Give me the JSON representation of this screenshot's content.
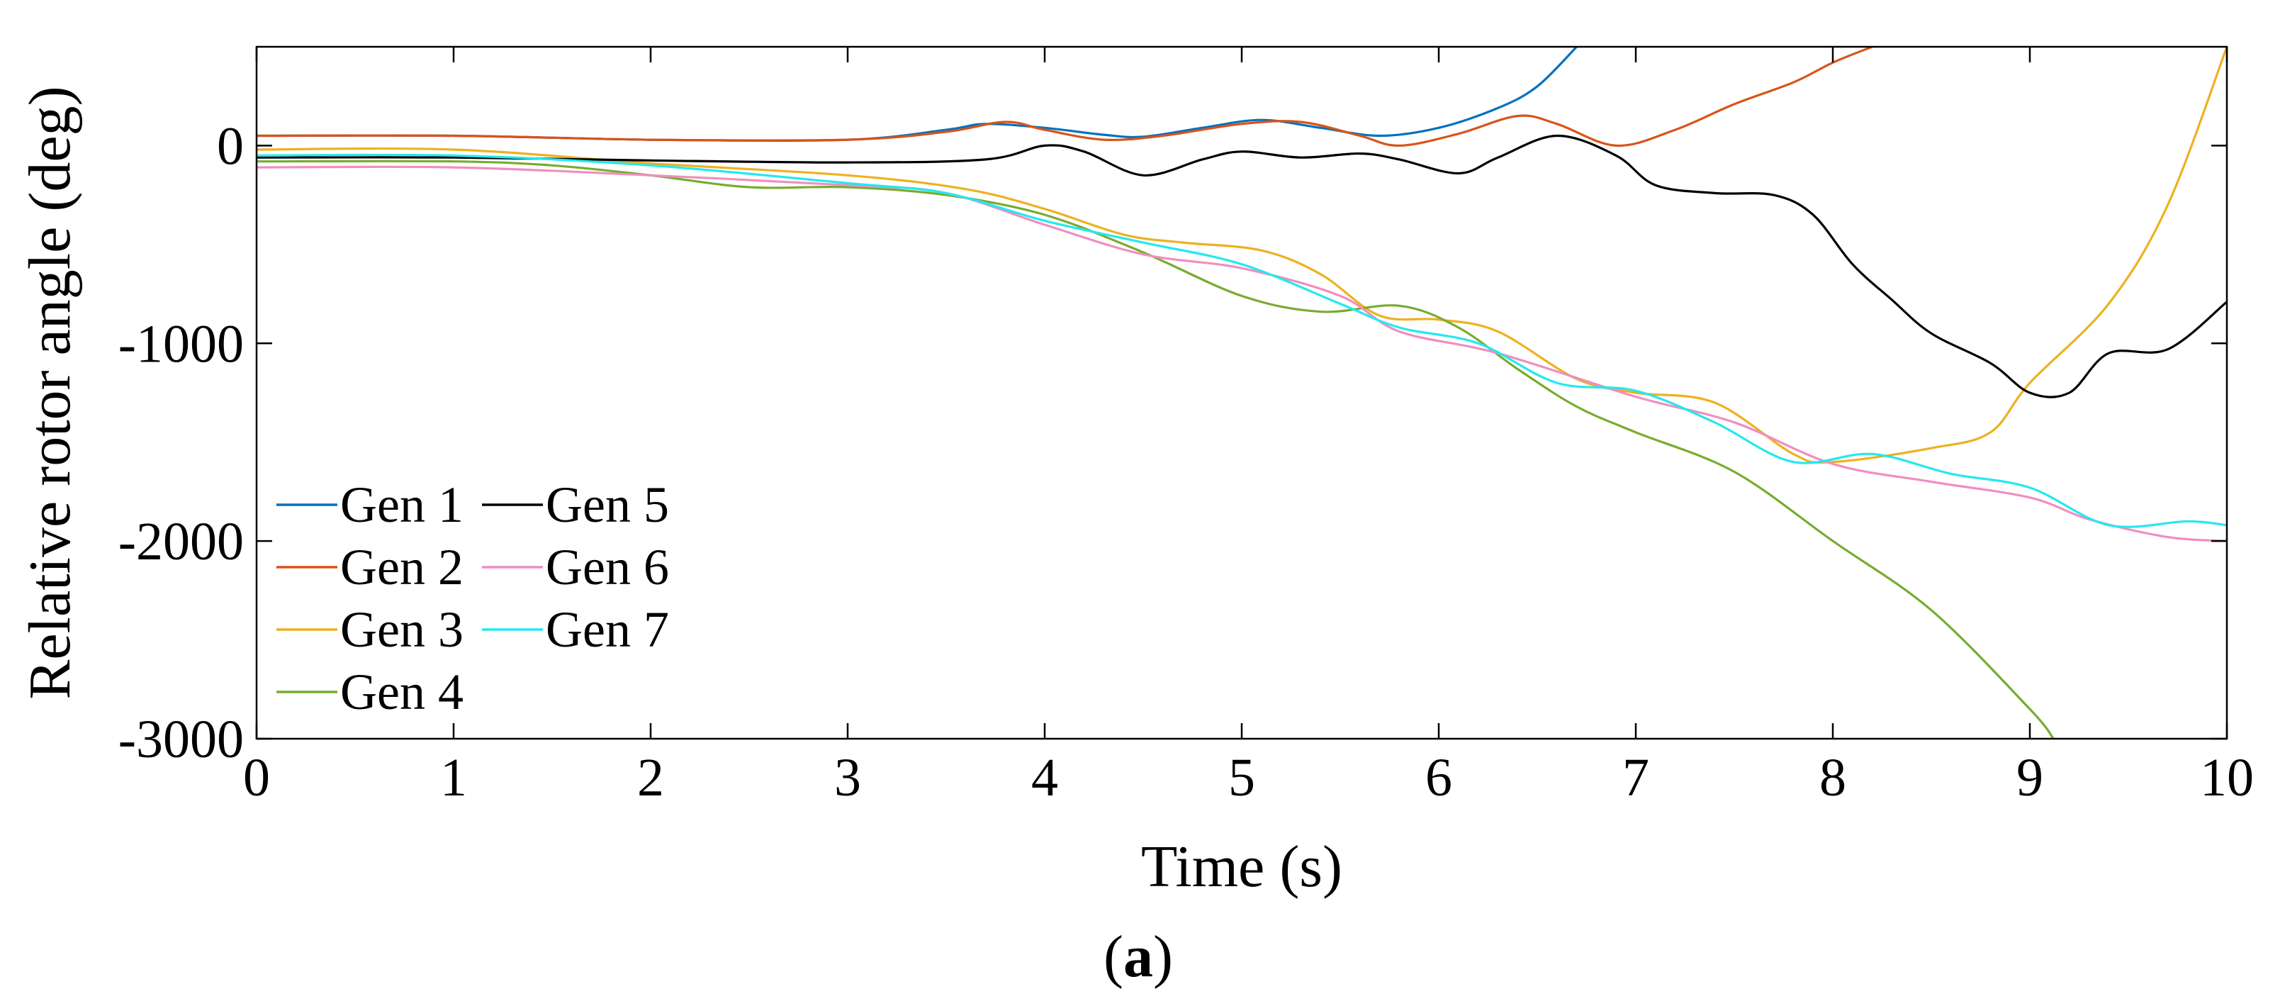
{
  "chart_data": {
    "type": "line",
    "title": "",
    "xlabel": "Time (s)",
    "ylabel": "Relative rotor angle (deg)",
    "xlim": [
      0,
      10
    ],
    "ylim": [
      -3000,
      500
    ],
    "xticks": [
      0,
      1,
      2,
      3,
      4,
      5,
      6,
      7,
      8,
      9,
      10
    ],
    "xtick_labels": [
      "0",
      "1",
      "2",
      "3",
      "4",
      "5",
      "6",
      "7",
      "8",
      "9",
      "10"
    ],
    "yticks": [
      0,
      -1000,
      -2000,
      -3000
    ],
    "ytick_labels": [
      "0",
      "-1000",
      "-2000",
      "-3000"
    ],
    "grid": false,
    "legend_position": "bottom-left",
    "caption": {
      "open": "(",
      "letter": "a",
      "close": ")"
    },
    "series": [
      {
        "name": "Gen 1",
        "color": "#0072BD",
        "points": [
          [
            0,
            50
          ],
          [
            1,
            50
          ],
          [
            2,
            30
          ],
          [
            3,
            30
          ],
          [
            3.5,
            80
          ],
          [
            3.7,
            110
          ],
          [
            4,
            90
          ],
          [
            4.3,
            55
          ],
          [
            4.5,
            45
          ],
          [
            4.8,
            90
          ],
          [
            5.1,
            130
          ],
          [
            5.4,
            90
          ],
          [
            5.7,
            50
          ],
          [
            6,
            90
          ],
          [
            6.3,
            190
          ],
          [
            6.5,
            300
          ],
          [
            6.7,
            500
          ]
        ]
      },
      {
        "name": "Gen 2",
        "color": "#D95319",
        "points": [
          [
            0,
            50
          ],
          [
            1,
            50
          ],
          [
            2,
            30
          ],
          [
            3,
            30
          ],
          [
            3.5,
            70
          ],
          [
            3.8,
            120
          ],
          [
            4,
            80
          ],
          [
            4.3,
            30
          ],
          [
            4.6,
            50
          ],
          [
            5,
            110
          ],
          [
            5.3,
            120
          ],
          [
            5.6,
            50
          ],
          [
            5.8,
            0
          ],
          [
            6.1,
            60
          ],
          [
            6.4,
            150
          ],
          [
            6.6,
            110
          ],
          [
            6.9,
            0
          ],
          [
            7.2,
            80
          ],
          [
            7.5,
            210
          ],
          [
            7.8,
            320
          ],
          [
            8,
            420
          ],
          [
            8.2,
            500
          ]
        ]
      },
      {
        "name": "Gen 3",
        "color": "#EDB120",
        "points": [
          [
            0,
            -20
          ],
          [
            1,
            -20
          ],
          [
            2,
            -90
          ],
          [
            3,
            -150
          ],
          [
            3.6,
            -220
          ],
          [
            4,
            -320
          ],
          [
            4.4,
            -450
          ],
          [
            4.7,
            -490
          ],
          [
            5.1,
            -530
          ],
          [
            5.4,
            -650
          ],
          [
            5.7,
            -860
          ],
          [
            6,
            -880
          ],
          [
            6.3,
            -940
          ],
          [
            6.7,
            -1180
          ],
          [
            7,
            -1250
          ],
          [
            7.4,
            -1300
          ],
          [
            7.8,
            -1560
          ],
          [
            8,
            -1600
          ],
          [
            8.5,
            -1530
          ],
          [
            8.8,
            -1450
          ],
          [
            9,
            -1200
          ],
          [
            9.4,
            -800
          ],
          [
            9.7,
            -300
          ],
          [
            10,
            500
          ]
        ]
      },
      {
        "name": "Gen 4",
        "color": "#77AC30",
        "points": [
          [
            0,
            -80
          ],
          [
            1,
            -80
          ],
          [
            1.5,
            -100
          ],
          [
            2,
            -150
          ],
          [
            2.5,
            -210
          ],
          [
            3,
            -210
          ],
          [
            3.5,
            -250
          ],
          [
            4,
            -350
          ],
          [
            4.5,
            -540
          ],
          [
            5,
            -760
          ],
          [
            5.4,
            -840
          ],
          [
            5.8,
            -810
          ],
          [
            6.1,
            -920
          ],
          [
            6.4,
            -1130
          ],
          [
            6.7,
            -1320
          ],
          [
            7,
            -1450
          ],
          [
            7.5,
            -1650
          ],
          [
            8,
            -2000
          ],
          [
            8.5,
            -2350
          ],
          [
            9,
            -2850
          ],
          [
            9.12,
            -3000
          ]
        ]
      },
      {
        "name": "Gen 5",
        "color": "#000000",
        "points": [
          [
            0,
            -60
          ],
          [
            1,
            -60
          ],
          [
            2,
            -75
          ],
          [
            3,
            -85
          ],
          [
            3.7,
            -70
          ],
          [
            4,
            0
          ],
          [
            4.2,
            -30
          ],
          [
            4.5,
            -150
          ],
          [
            4.8,
            -70
          ],
          [
            5,
            -30
          ],
          [
            5.3,
            -60
          ],
          [
            5.6,
            -40
          ],
          [
            5.8,
            -70
          ],
          [
            6.1,
            -140
          ],
          [
            6.3,
            -60
          ],
          [
            6.6,
            50
          ],
          [
            6.9,
            -50
          ],
          [
            7.1,
            -200
          ],
          [
            7.4,
            -240
          ],
          [
            7.7,
            -250
          ],
          [
            7.9,
            -350
          ],
          [
            8.1,
            -600
          ],
          [
            8.3,
            -780
          ],
          [
            8.5,
            -950
          ],
          [
            8.8,
            -1100
          ],
          [
            9,
            -1250
          ],
          [
            9.2,
            -1250
          ],
          [
            9.4,
            -1050
          ],
          [
            9.7,
            -1030
          ],
          [
            10,
            -790
          ]
        ]
      },
      {
        "name": "Gen 6",
        "color": "#F08EC0",
        "points": [
          [
            0,
            -110
          ],
          [
            1,
            -110
          ],
          [
            2,
            -150
          ],
          [
            3,
            -200
          ],
          [
            3.5,
            -240
          ],
          [
            4,
            -400
          ],
          [
            4.5,
            -550
          ],
          [
            5,
            -620
          ],
          [
            5.5,
            -760
          ],
          [
            5.8,
            -940
          ],
          [
            6.3,
            -1050
          ],
          [
            7,
            -1270
          ],
          [
            7.5,
            -1400
          ],
          [
            8,
            -1610
          ],
          [
            8.5,
            -1700
          ],
          [
            9,
            -1780
          ],
          [
            9.3,
            -1890
          ],
          [
            9.7,
            -1980
          ],
          [
            10,
            -2000
          ]
        ]
      },
      {
        "name": "Gen 7",
        "color": "#24E8F0",
        "points": [
          [
            0,
            -50
          ],
          [
            1,
            -50
          ],
          [
            2,
            -100
          ],
          [
            3,
            -190
          ],
          [
            3.5,
            -240
          ],
          [
            4,
            -380
          ],
          [
            4.5,
            -490
          ],
          [
            5,
            -600
          ],
          [
            5.5,
            -800
          ],
          [
            5.8,
            -920
          ],
          [
            6.2,
            -1000
          ],
          [
            6.6,
            -1200
          ],
          [
            7,
            -1240
          ],
          [
            7.4,
            -1400
          ],
          [
            7.8,
            -1600
          ],
          [
            8.2,
            -1560
          ],
          [
            8.6,
            -1660
          ],
          [
            9,
            -1730
          ],
          [
            9.4,
            -1920
          ],
          [
            9.8,
            -1900
          ],
          [
            10,
            -1920
          ]
        ]
      }
    ]
  }
}
